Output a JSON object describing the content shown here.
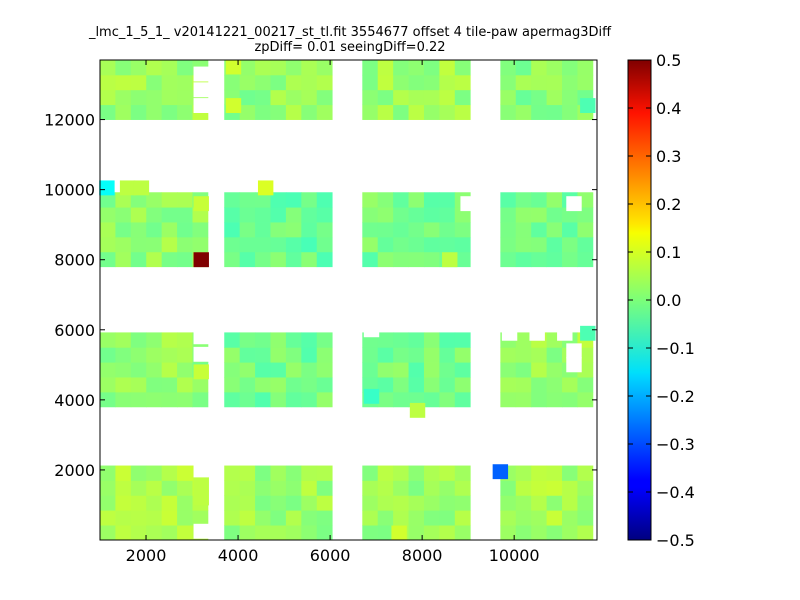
{
  "chart_data": {
    "type": "heatmap",
    "title_line1": "_lmc_1_5_1_ v20141221_00217_st_tl.fit 3554677 offset 4 tile-paw apermag3Diff",
    "title_line2": "zpDiff= 0.01 seeingDiff=0.22",
    "xlabel": "",
    "ylabel": "",
    "xlim": [
      1000,
      11800
    ],
    "ylim": [
      0,
      13700
    ],
    "xticks": [
      2000,
      4000,
      6000,
      8000,
      10000
    ],
    "yticks": [
      2000,
      4000,
      6000,
      8000,
      10000,
      12000
    ],
    "colorbar": {
      "colormap": "jet",
      "range": [
        -0.5,
        0.5
      ],
      "ticks": [
        "0.5",
        "0.4",
        "0.3",
        "0.2",
        "0.1",
        "0.0",
        "−0.1",
        "−0.2",
        "−0.3",
        "−0.4",
        "−0.5"
      ]
    },
    "cell_size": {
      "x": 335,
      "y": 425
    },
    "background_value": 0.0,
    "tiles": [
      {
        "x": [
          1000,
          3350
        ],
        "y": [
          12000,
          13700
        ],
        "value": 0.03
      },
      {
        "x": [
          3700,
          6000
        ],
        "y": [
          12000,
          13700
        ],
        "value": 0.02
      },
      {
        "x": [
          6700,
          9000
        ],
        "y": [
          12000,
          13700
        ],
        "value": 0.03
      },
      {
        "x": [
          9700,
          11800
        ],
        "y": [
          12000,
          13700
        ],
        "value": 0.01
      },
      {
        "x": [
          1000,
          3350
        ],
        "y": [
          7800,
          9900
        ],
        "value": 0.02
      },
      {
        "x": [
          3700,
          6000
        ],
        "y": [
          7800,
          9900
        ],
        "value": -0.02
      },
      {
        "x": [
          6700,
          9000
        ],
        "y": [
          7800,
          9900
        ],
        "value": -0.01
      },
      {
        "x": [
          9700,
          11800
        ],
        "y": [
          7800,
          9900
        ],
        "value": -0.01
      },
      {
        "x": [
          1000,
          3350
        ],
        "y": [
          3800,
          6000
        ],
        "value": 0.02
      },
      {
        "x": [
          3700,
          6000
        ],
        "y": [
          3800,
          6000
        ],
        "value": -0.01
      },
      {
        "x": [
          6700,
          9000
        ],
        "y": [
          3800,
          6000
        ],
        "value": -0.01
      },
      {
        "x": [
          9700,
          11800
        ],
        "y": [
          3800,
          6000
        ],
        "value": 0.03
      },
      {
        "x": [
          1000,
          3350
        ],
        "y": [
          0,
          2100
        ],
        "value": 0.04
      },
      {
        "x": [
          3700,
          6000
        ],
        "y": [
          0,
          2100
        ],
        "value": 0.03
      },
      {
        "x": [
          6700,
          9000
        ],
        "y": [
          0,
          2100
        ],
        "value": 0.03
      },
      {
        "x": [
          9700,
          11800
        ],
        "y": [
          0,
          2100
        ],
        "value": 0.04
      }
    ],
    "cells": [
      {
        "x": 3200,
        "y": 8000,
        "value": 0.5
      },
      {
        "x": 9700,
        "y": 1950,
        "value": -0.28
      },
      {
        "x": 1150,
        "y": 10050,
        "value": -0.12
      },
      {
        "x": 1600,
        "y": 10050,
        "value": 0.06
      },
      {
        "x": 1900,
        "y": 10050,
        "value": 0.06
      },
      {
        "x": 4600,
        "y": 10050,
        "value": 0.09
      },
      {
        "x": 3200,
        "y": 9600,
        "value": 0.07
      },
      {
        "x": 3200,
        "y": 4800,
        "value": 0.07
      },
      {
        "x": 3200,
        "y": 1600,
        "value": 0.06
      },
      {
        "x": 3200,
        "y": 1200,
        "value": 0.06
      },
      {
        "x": 3900,
        "y": 12400,
        "value": 0.08
      },
      {
        "x": 3900,
        "y": 13500,
        "value": 0.08
      },
      {
        "x": 6900,
        "y": 4100,
        "value": -0.07
      },
      {
        "x": 7900,
        "y": 3700,
        "value": 0.06
      },
      {
        "x": 8600,
        "y": 8000,
        "value": 0.06
      },
      {
        "x": 7500,
        "y": 200,
        "value": 0.08
      },
      {
        "x": 11600,
        "y": 12400,
        "value": -0.05
      },
      {
        "x": 11600,
        "y": 5900,
        "value": -0.05
      }
    ],
    "blank_cells": [
      {
        "x": 3200,
        "y": 12400
      },
      {
        "x": 3200,
        "y": 12850
      },
      {
        "x": 3200,
        "y": 13300
      },
      {
        "x": 3200,
        "y": 2000
      },
      {
        "x": 3200,
        "y": 250
      },
      {
        "x": 9300,
        "y": 9600
      },
      {
        "x": 9000,
        "y": 9600
      },
      {
        "x": 11300,
        "y": 9600
      },
      {
        "x": 9900,
        "y": 5900
      },
      {
        "x": 10500,
        "y": 5900
      },
      {
        "x": 11100,
        "y": 5900
      },
      {
        "x": 11300,
        "y": 5400
      },
      {
        "x": 11300,
        "y": 5000
      },
      {
        "x": 3200,
        "y": 5300
      },
      {
        "x": 3200,
        "y": 5800
      },
      {
        "x": 6900,
        "y": 6000
      }
    ]
  }
}
